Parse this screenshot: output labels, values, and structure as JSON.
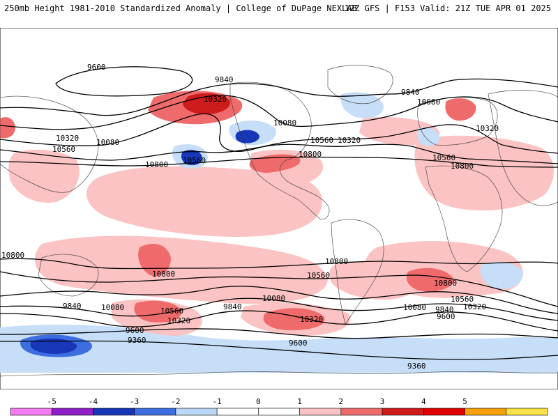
{
  "header": {
    "title": "250mb Height 1981-2010 Standardized Anomaly | College of DuPage NEXLAB",
    "run_info": "12Z GFS | F153 Valid: 21Z TUE APR 01 2025"
  },
  "legend": {
    "ticks": [
      "-5",
      "-4",
      "-3",
      "-2",
      "-1",
      "0",
      "1",
      "2",
      "3",
      "4",
      "5"
    ],
    "colors": [
      "#f47cf0",
      "#8f1fc8",
      "#1736b8",
      "#3d6ee0",
      "#b9d7f7",
      "#ffffff",
      "#ffffff",
      "#fbc3c3",
      "#ef6b6b",
      "#ce1b1b",
      "#e10000",
      "#f7a20c",
      "#fde14a"
    ]
  },
  "contour_labels": [
    "9600",
    "9840",
    "10080",
    "10320",
    "10560",
    "10800",
    "9360"
  ],
  "colors": {
    "pos_light": "#fbc3c3",
    "pos_mid": "#ef6b6b",
    "pos_strong": "#ce1b1b",
    "neg_light": "#c6def8",
    "neg_mid": "#3d6ee0",
    "neg_strong": "#1736b8"
  }
}
